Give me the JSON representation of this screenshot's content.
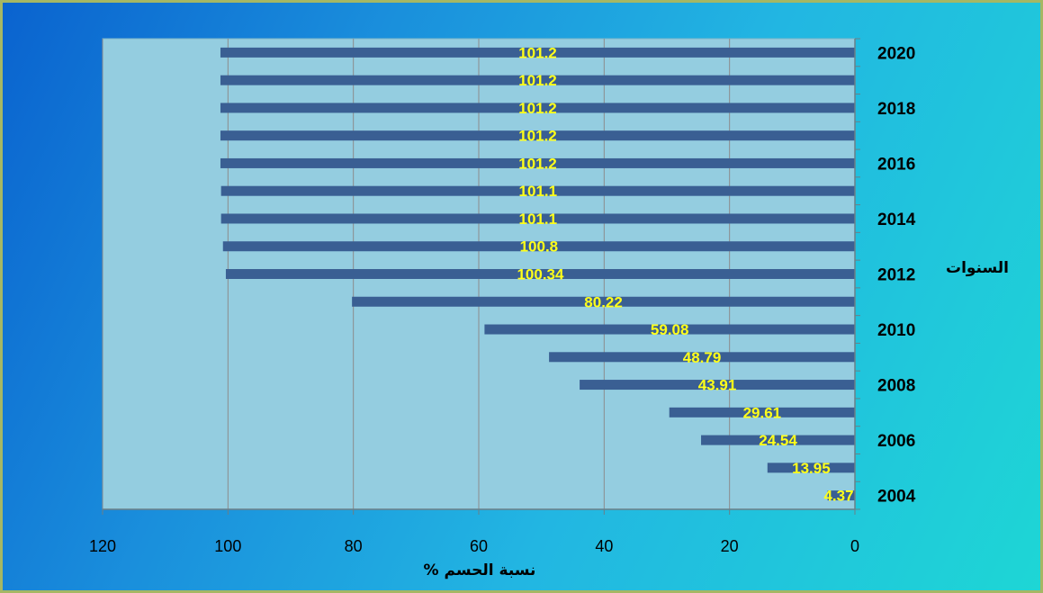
{
  "chart_data": {
    "type": "bar",
    "orientation": "horizontal",
    "x_axis_reversed": true,
    "y_axis_position": "right",
    "categories": [
      "2004",
      "2005",
      "2006",
      "2007",
      "2008",
      "2009",
      "2010",
      "2011",
      "2012",
      "2013",
      "2014",
      "2015",
      "2016",
      "2017",
      "2018",
      "2019",
      "2020"
    ],
    "category_labels": [
      "2004",
      "",
      "2006",
      "",
      "2008",
      "",
      "2010",
      "",
      "2012",
      "",
      "2014",
      "",
      "2016",
      "",
      "2018",
      "",
      "2020"
    ],
    "values": [
      4.37,
      13.95,
      24.54,
      29.61,
      43.91,
      48.79,
      59.08,
      80.22,
      100.34,
      100.8,
      101.1,
      101.1,
      101.2,
      101.2,
      101.2,
      101.2,
      101.2
    ],
    "data_labels": [
      "4.37",
      "13.95",
      "24.54",
      "29.61",
      "43.91",
      "48.79",
      "59.08",
      "80.22",
      "100.34",
      "100.8",
      "101.1",
      "101.1",
      "101.2",
      "101.2",
      "101.2",
      "101.2",
      "101.2"
    ],
    "xlabel": "نسبة الحسم %",
    "ylabel": "السنوات",
    "xlim": [
      0,
      120
    ],
    "x_ticks": [
      0,
      20,
      40,
      60,
      80,
      100,
      120
    ],
    "grid": "vertical",
    "colors": {
      "bar": "#3a5f93",
      "plot_background": "#94cde0",
      "data_label": "#ffff1a",
      "gridline": "#8c8c8c"
    }
  }
}
